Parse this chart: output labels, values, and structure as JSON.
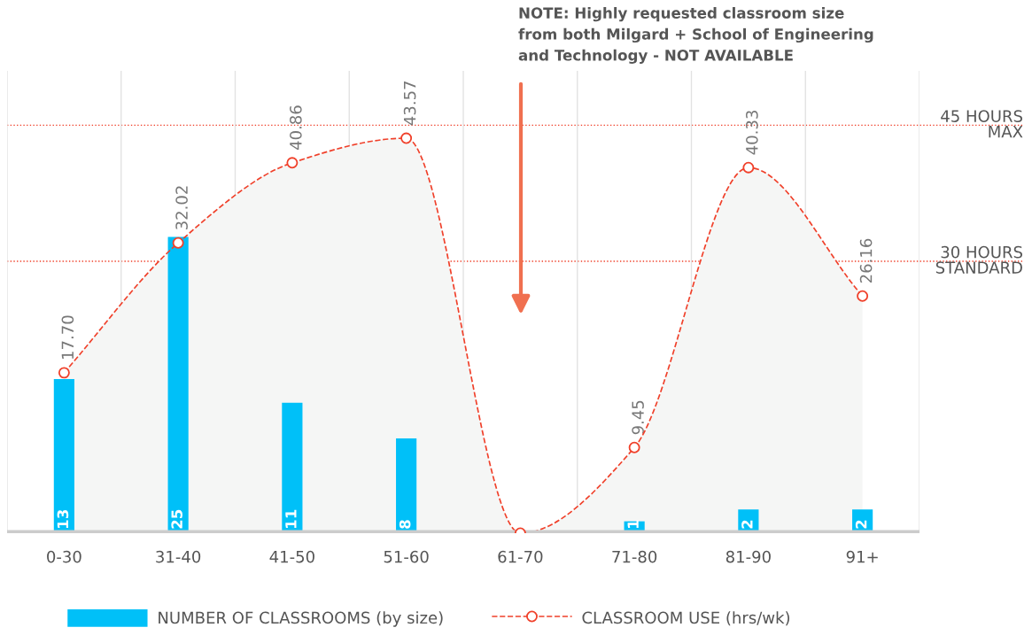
{
  "chart_data": {
    "type": "bar",
    "categories": [
      "0-30",
      "31-40",
      "41-50",
      "51-60",
      "61-70",
      "71-80",
      "81-90",
      "91+"
    ],
    "series": [
      {
        "name": "NUMBER OF CLASSROOMS (by size)",
        "color": "#00c0f8",
        "values": [
          13,
          25,
          11,
          8,
          null,
          1,
          2,
          2
        ],
        "value_labels": [
          "13",
          "25",
          "11",
          "8",
          null,
          "1",
          "2",
          "2"
        ]
      },
      {
        "name": "CLASSROOM USE (hrs/wk)",
        "type": "line",
        "axis": "y2",
        "color": "#f0402a",
        "line_style": "dashed",
        "marker": "circle",
        "values": [
          17.7,
          32.02,
          40.86,
          43.57,
          0,
          9.45,
          40.33,
          26.16
        ],
        "value_labels": [
          "17.70",
          "32.02",
          "40.86",
          "43.57",
          null,
          "9.45",
          "40.33",
          "26.16"
        ]
      }
    ],
    "ylim": [
      0,
      39
    ],
    "y2lim": [
      0,
      51
    ],
    "tick_labels": "x",
    "grid": "x",
    "legend": "bottom",
    "ref_lines": [
      {
        "axis": "y2",
        "value": 45,
        "label": "45 HOURS\nMAX",
        "color": "#f0402a",
        "line_style": "dotted"
      },
      {
        "axis": "y2",
        "value": 30,
        "label": "30 HOURS\nSTANDARD",
        "color": "#f0402a",
        "line_style": "dotted"
      }
    ],
    "annotations": [
      "NOTE: Highly requested classroom size\nfrom both Milgard + School of Engineering\nand Technology - NOT AVAILABLE"
    ]
  }
}
